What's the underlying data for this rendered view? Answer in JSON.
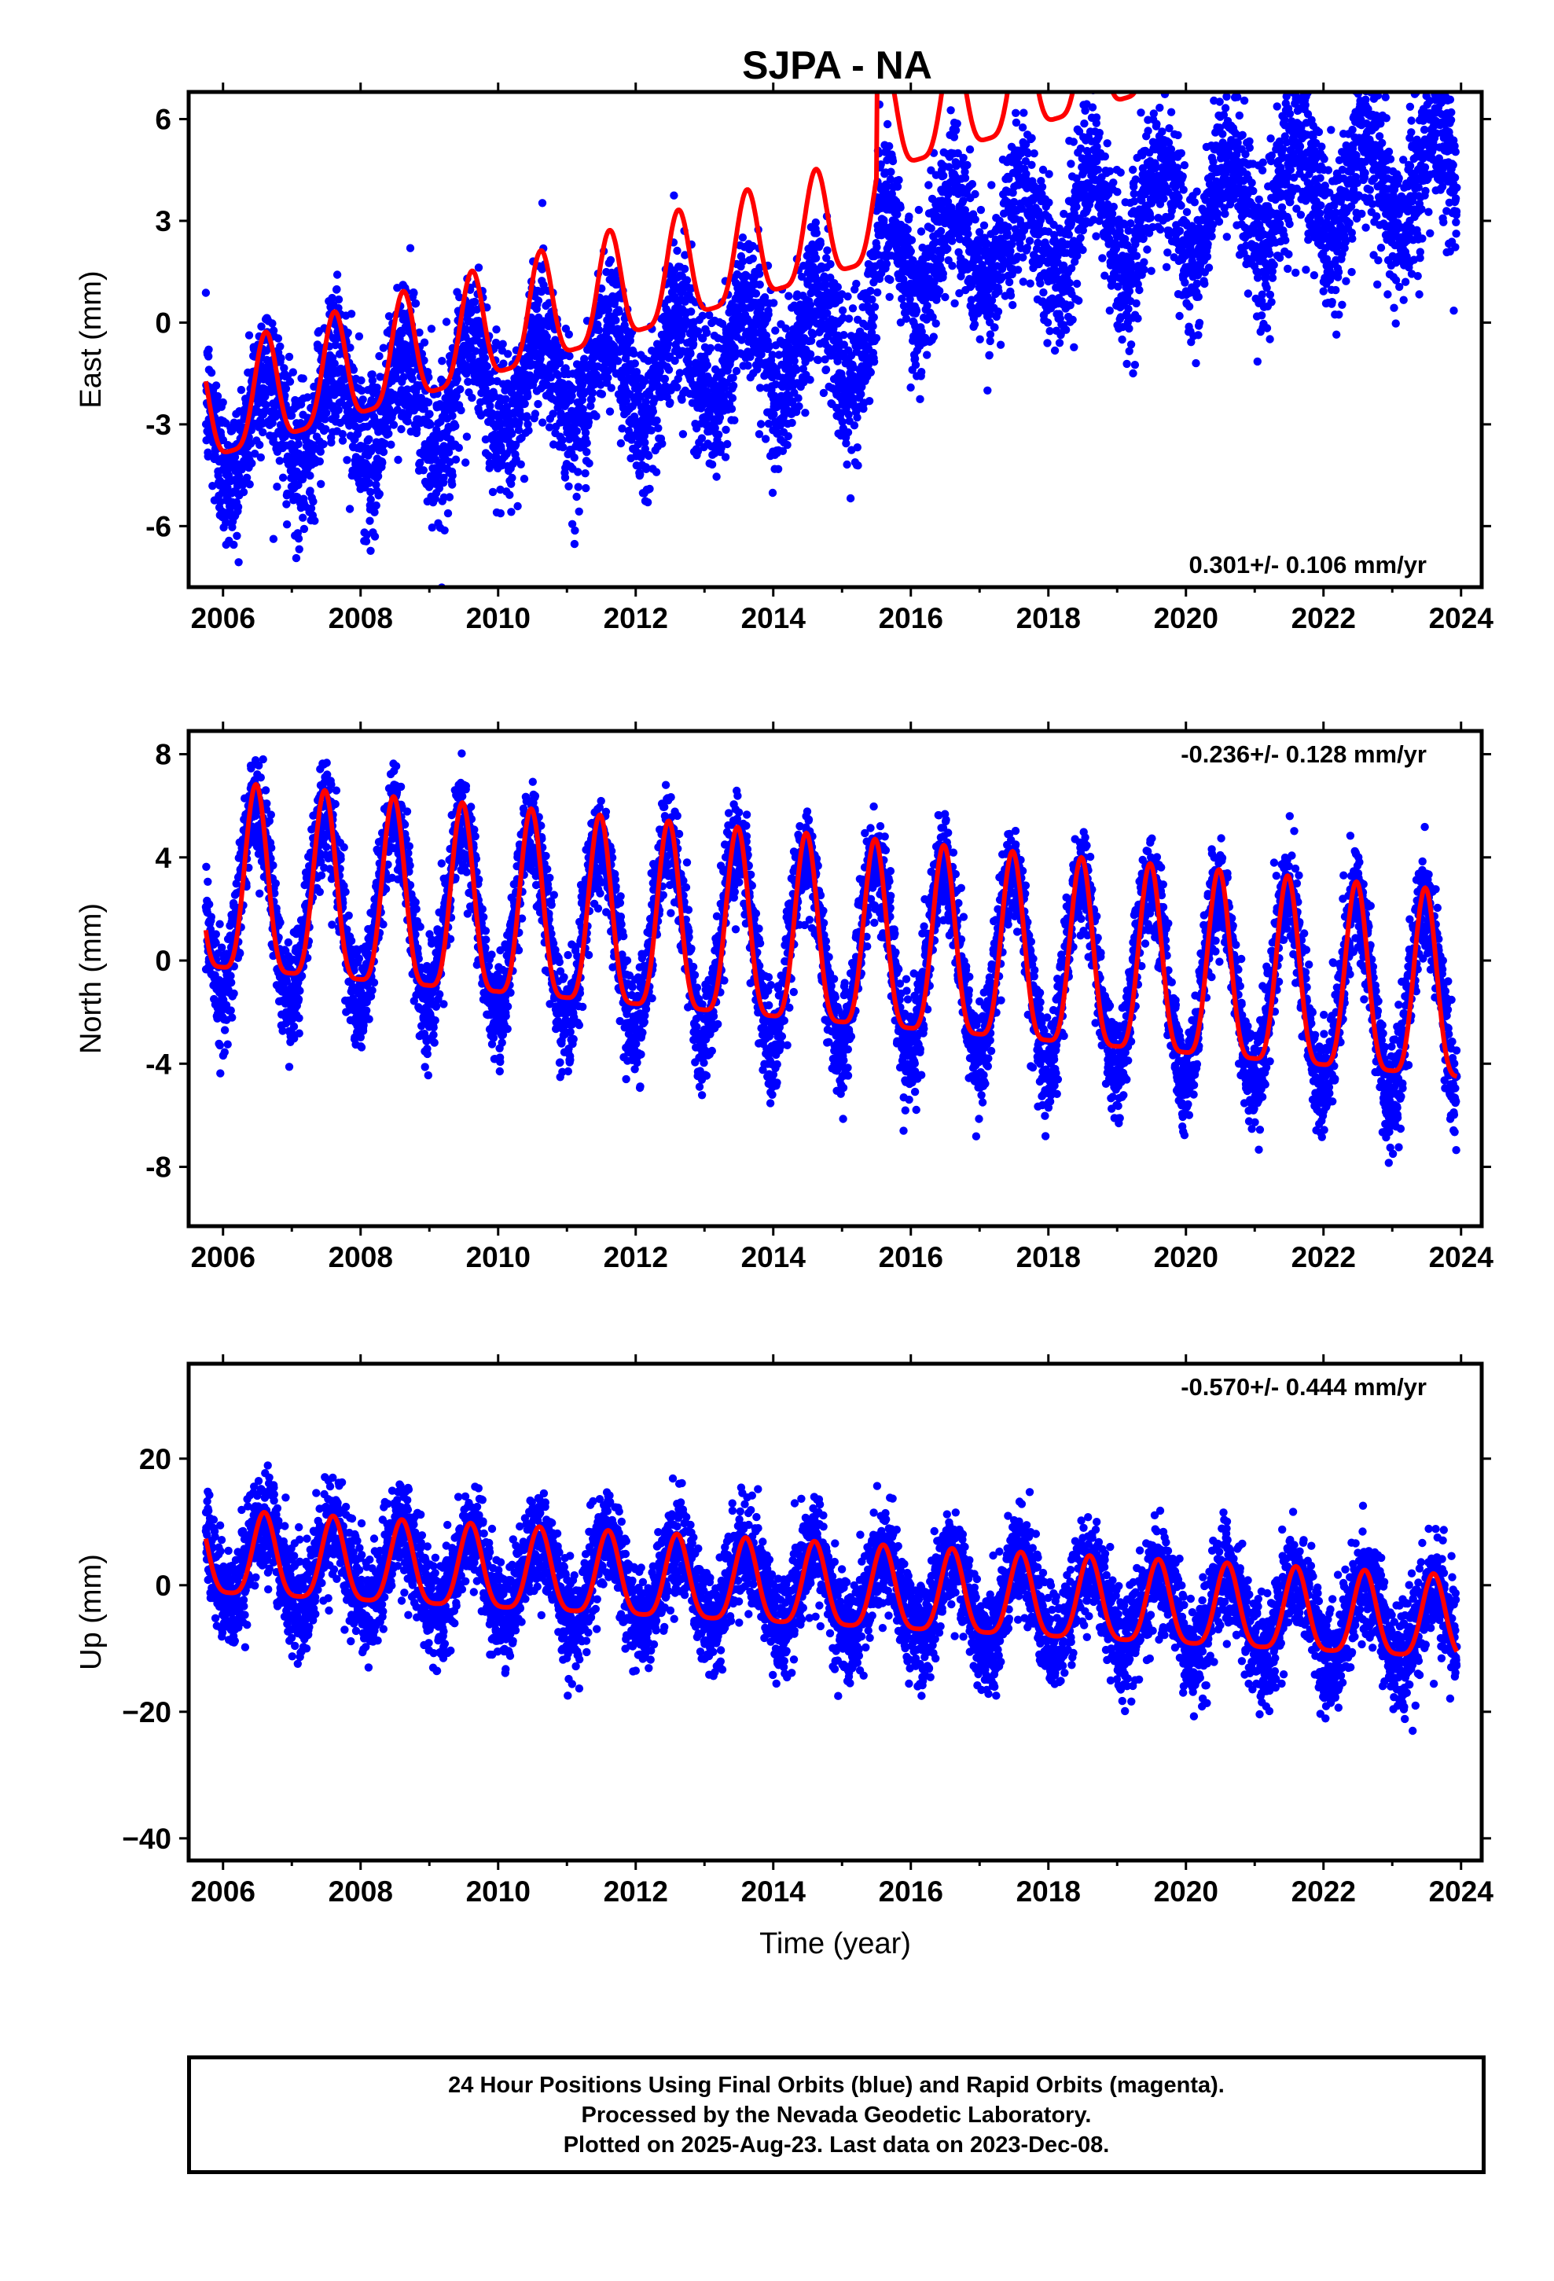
{
  "page_title": "SJPA - NA",
  "colors": {
    "final_orbits": "#0000ff",
    "model_fit": "#ff0000",
    "axes": "#000000"
  },
  "chart_data": [
    {
      "type": "scatter",
      "component": "East",
      "ylabel": "East (mm)",
      "xlabel": "",
      "xlim": [
        2005.5,
        2024.3
      ],
      "ylim": [
        -7.8,
        6.8
      ],
      "xticks": [
        "2006",
        "2008",
        "2010",
        "2012",
        "2014",
        "2016",
        "2018",
        "2020",
        "2022",
        "2024"
      ],
      "yticks": [
        "6",
        "3",
        "0",
        "-3",
        "-6"
      ],
      "rate_label": "0.301+/- 0.106 mm/yr",
      "rate_label_position": "bottom-right",
      "series": [
        {
          "values_description": "daily positions (blue points)",
          "x_range": [
            2005.75,
            2023.94
          ],
          "trend": {
            "start": -3.2,
            "step_2015_5": 2.2,
            "end_offset": 0.3
          },
          "annual_amplitude": 1.5,
          "peak_phase": 0.62,
          "scatter_sd": 1.1
        },
        {
          "values_description": "model fit (red curve)",
          "trend": {
            "start": -2.8,
            "step_2015_5": 2.6,
            "rate": 0.3
          },
          "annual_amplitude": 1.6,
          "semiannual_amplitude": 0.4
        }
      ]
    },
    {
      "type": "scatter",
      "component": "North",
      "ylabel": "North (mm)",
      "xlabel": "",
      "xlim": [
        2005.5,
        2024.3
      ],
      "ylim": [
        -10.3,
        8.9
      ],
      "xticks": [
        "2006",
        "2008",
        "2010",
        "2012",
        "2014",
        "2016",
        "2018",
        "2020",
        "2022",
        "2024"
      ],
      "yticks": [
        "8",
        "4",
        "0",
        "-4",
        "-8"
      ],
      "rate_label": "-0.236+/- 0.128 mm/yr",
      "rate_label_position": "top-right",
      "series": [
        {
          "values_description": "daily positions (blue points)",
          "x_range": [
            2005.75,
            2023.94
          ],
          "trend": {
            "start": 2.5,
            "rate": -0.236
          },
          "annual_amplitude": 3.7,
          "peak_phase": 0.48,
          "scatter_sd": 1.0
        },
        {
          "values_description": "model fit (red curve)",
          "trend": {
            "start": 2.5,
            "rate": -0.236
          },
          "annual_amplitude": 3.6,
          "semiannual_amplitude": 0.9
        }
      ]
    },
    {
      "type": "scatter",
      "component": "Up",
      "ylabel": "Up (mm)",
      "xlabel": "Time (year)",
      "xlim": [
        2005.5,
        2024.3
      ],
      "ylim": [
        -43.5,
        35.0
      ],
      "xticks": [
        "2006",
        "2008",
        "2010",
        "2012",
        "2014",
        "2016",
        "2018",
        "2020",
        "2022",
        "2024"
      ],
      "yticks": [
        "20",
        "0",
        "−20",
        "−40"
      ],
      "rate_label": "-0.570+/- 0.444 mm/yr",
      "rate_label_position": "top-right",
      "series": [
        {
          "values_description": "daily positions (blue points)",
          "x_range": [
            2005.75,
            2023.94
          ],
          "trend": {
            "start": 4.0,
            "rate": -0.57
          },
          "annual_amplitude": 6.5,
          "peak_phase": 0.6,
          "scatter_sd": 4.0
        },
        {
          "values_description": "model fit (red curve)",
          "trend": {
            "start": 4.0,
            "rate": -0.57
          },
          "annual_amplitude": 6.5,
          "semiannual_amplitude": 1.5
        }
      ]
    }
  ],
  "footer": {
    "line1": "24 Hour Positions Using Final Orbits (blue) and Rapid Orbits (magenta).",
    "line2": "Processed by the Nevada Geodetic Laboratory.",
    "line3": "Plotted on 2025-Aug-23. Last data on 2023-Dec-08."
  }
}
